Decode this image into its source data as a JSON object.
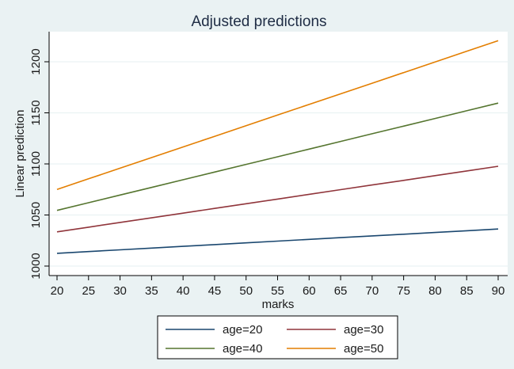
{
  "chart_data": {
    "type": "line",
    "title": "Adjusted predictions",
    "xlabel": "marks",
    "ylabel": "Linear prediction",
    "x": [
      20,
      25,
      30,
      35,
      40,
      45,
      50,
      55,
      60,
      65,
      70,
      75,
      80,
      85,
      90
    ],
    "xlim": [
      20,
      90
    ],
    "ylim": [
      1000,
      1220
    ],
    "xticks": [
      "20",
      "25",
      "30",
      "35",
      "40",
      "45",
      "50",
      "55",
      "60",
      "65",
      "70",
      "75",
      "80",
      "85",
      "90"
    ],
    "yticks": [
      "1000",
      "1050",
      "1100",
      "1150",
      "1200"
    ],
    "grid": true,
    "legend_position": "bottom",
    "series": [
      {
        "name": "age=20",
        "color": "#1a476f",
        "values": [
          1012.5,
          1014.2,
          1015.9,
          1017.6,
          1019.3,
          1021.0,
          1022.7,
          1024.4,
          1026.1,
          1027.8,
          1029.5,
          1031.2,
          1032.9,
          1034.6,
          1036.3
        ]
      },
      {
        "name": "age=30",
        "color": "#90353b",
        "values": [
          1033.5,
          1038.1,
          1042.7,
          1047.2,
          1051.8,
          1056.4,
          1061.0,
          1065.6,
          1070.2,
          1074.8,
          1079.4,
          1083.9,
          1088.5,
          1093.1,
          1097.7
        ]
      },
      {
        "name": "age=40",
        "color": "#55752f",
        "values": [
          1054.5,
          1062.0,
          1069.5,
          1077.0,
          1084.5,
          1092.0,
          1099.5,
          1107.0,
          1114.5,
          1122.0,
          1129.5,
          1137.0,
          1144.5,
          1152.0,
          1159.5
        ]
      },
      {
        "name": "age=50",
        "color": "#e37e00",
        "values": [
          1075.0,
          1085.4,
          1095.8,
          1106.2,
          1116.6,
          1127.0,
          1137.4,
          1147.8,
          1158.2,
          1168.6,
          1179.0,
          1189.4,
          1199.8,
          1210.2,
          1220.6
        ]
      }
    ]
  },
  "colors": {
    "background": "#eaf2f3",
    "plot_background": "#ffffff",
    "grid": "#eaf2f3",
    "axis": "#000000",
    "title": "#1e2c44"
  }
}
